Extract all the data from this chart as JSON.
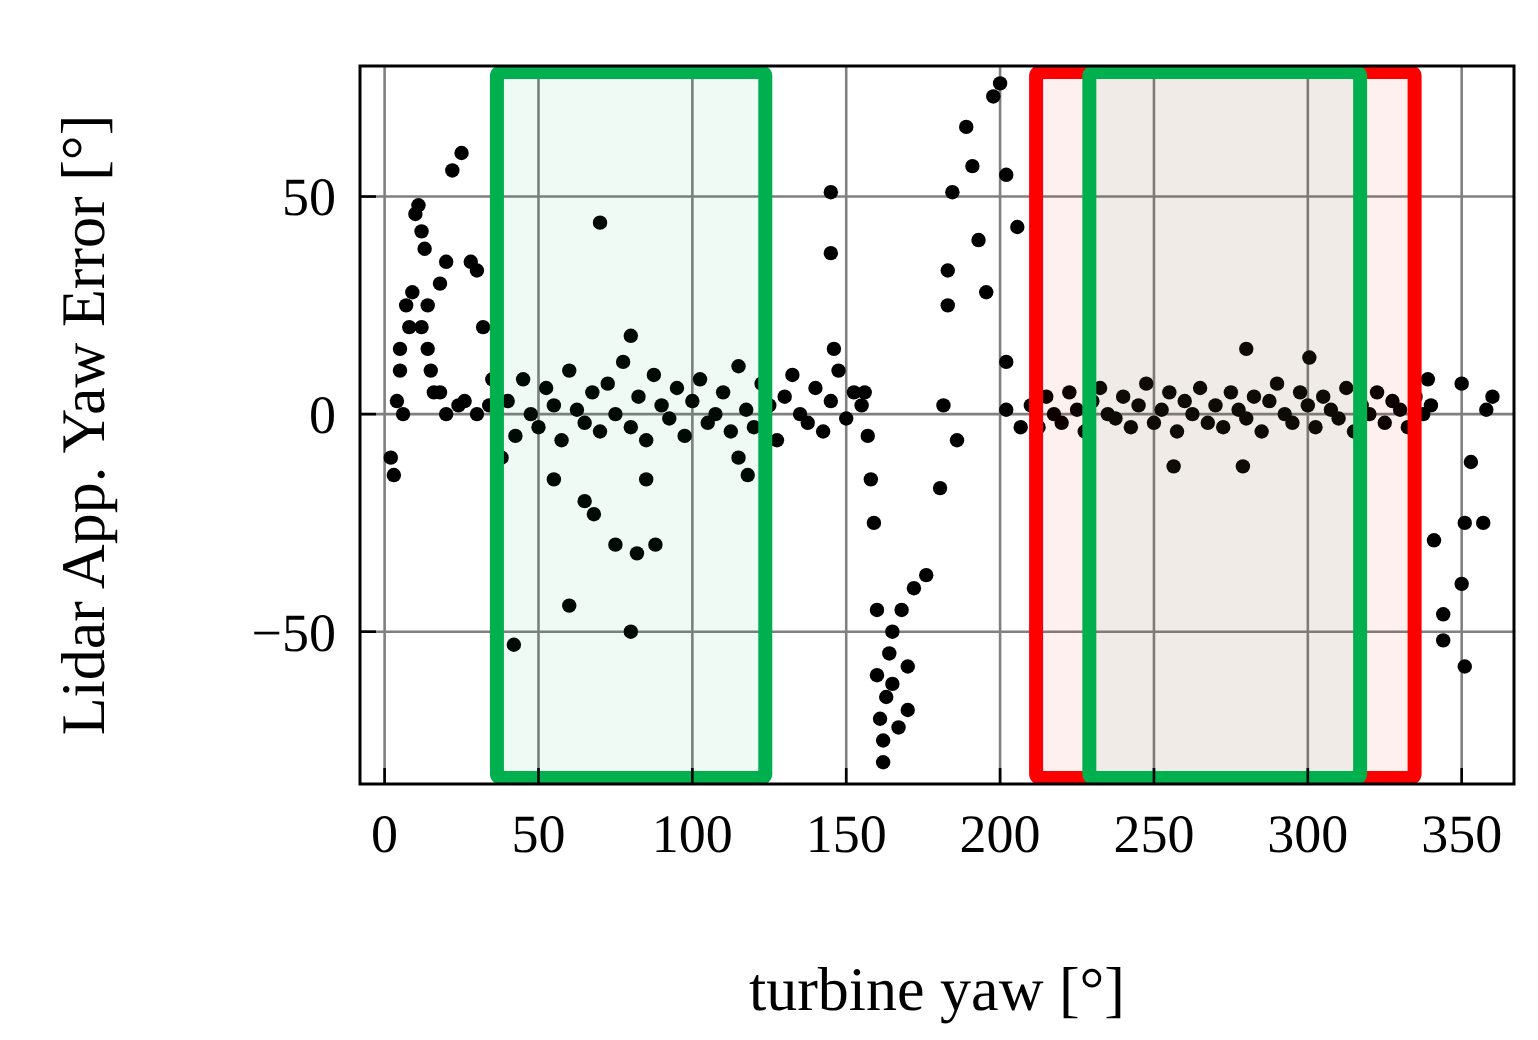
{
  "chart_data": {
    "type": "scatter",
    "xlabel": "turbine yaw [°]",
    "ylabel": "Lidar App. Yaw Error [°]",
    "xlim": [
      -8,
      367
    ],
    "ylim": [
      -85,
      80
    ],
    "xticks": [
      0,
      50,
      100,
      150,
      200,
      250,
      300,
      350
    ],
    "yticks": [
      -50,
      0,
      50
    ],
    "grid": true,
    "marker": "circle",
    "bands": [
      {
        "axis": "x",
        "from": 36.5,
        "to": 123.7,
        "color": "#00b04f"
      },
      {
        "axis": "x",
        "from": 211.7,
        "to": 334.7,
        "color": "#ff0000"
      },
      {
        "axis": "x",
        "from": 229,
        "to": 317,
        "color": "#00b04f"
      }
    ],
    "series": [
      {
        "color": "#000000",
        "x": [
          2,
          3,
          4,
          5,
          6,
          8,
          9,
          10,
          11,
          12,
          13,
          14,
          15,
          16,
          18,
          20,
          22,
          25,
          24,
          28,
          30,
          32,
          35,
          38,
          5,
          7,
          12,
          14,
          18,
          20,
          26,
          30,
          34,
          40,
          42.5,
          45,
          47.5,
          50,
          52.5,
          55,
          57.5,
          60,
          62.5,
          65,
          67.5,
          70,
          72.5,
          75,
          77.5,
          80,
          82.5,
          85,
          87.5,
          90,
          92.5,
          95,
          97.5,
          100,
          102.5,
          105,
          107.5,
          110,
          112.5,
          115,
          117.5,
          120,
          122.5,
          125,
          127.5,
          130,
          132.5,
          135,
          137.5,
          140,
          142.5,
          145,
          147.5,
          150,
          152.5,
          155,
          42,
          60,
          70,
          55,
          65,
          68,
          75,
          80,
          82,
          88,
          85,
          80,
          115,
          118,
          145,
          145,
          146,
          156,
          157,
          158,
          159,
          160,
          160,
          161,
          162,
          162,
          163,
          164,
          165,
          167,
          168,
          170,
          172,
          165,
          170,
          176,
          180.5,
          181.6,
          186,
          183,
          183,
          184.5,
          189,
          191,
          193,
          195.5,
          197.8,
          200,
          202,
          202,
          202,
          205.6,
          206.7,
          210,
          212.5,
          215,
          217.5,
          220,
          222.5,
          225,
          227.5,
          230,
          232.5,
          235,
          237.5,
          240,
          242.5,
          245,
          247.5,
          250,
          252.5,
          255,
          257.5,
          260,
          262.5,
          265,
          267.5,
          270,
          272.5,
          275,
          277.5,
          280,
          282.5,
          285,
          287.5,
          290,
          292.5,
          295,
          297.5,
          300,
          302.5,
          305,
          307.5,
          310,
          312.5,
          315,
          317.5,
          320,
          322.5,
          325,
          327.5,
          330,
          332.5,
          335,
          337.5,
          340,
          256.4,
          278.9,
          280,
          300.5,
          339,
          341,
          344,
          344,
          350,
          351,
          351,
          353,
          357,
          358,
          360,
          350
        ],
        "values": [
          -10,
          -14,
          3,
          10,
          0,
          20,
          28,
          46,
          48,
          42,
          38,
          25,
          10,
          5,
          30,
          35,
          56,
          60,
          2,
          35,
          33,
          20,
          8,
          -10,
          15,
          25,
          20,
          15,
          5,
          0,
          3,
          0,
          2,
          3,
          -5,
          8,
          0,
          -3,
          6,
          2,
          -6,
          10,
          1,
          -2,
          5,
          -4,
          7,
          0,
          12,
          -3,
          4,
          -6,
          9,
          2,
          -1,
          6,
          -5,
          3,
          8,
          -2,
          0,
          5,
          -4,
          11,
          1,
          -3,
          7,
          2,
          -6,
          4,
          9,
          0,
          -2,
          6,
          -4,
          3,
          10,
          -1,
          5,
          2,
          -53,
          -44,
          44,
          -15,
          -20,
          -23,
          -30,
          -50,
          -32,
          -30,
          -15,
          18,
          -10,
          -14,
          51,
          37,
          15,
          5,
          -5,
          -15,
          -25,
          -45,
          -60,
          -70,
          -80,
          -75,
          -65,
          -55,
          -62,
          -72,
          -45,
          -58,
          -40,
          -50,
          -68,
          -37,
          -17,
          2,
          -6,
          33,
          25,
          51,
          66,
          57,
          40,
          28,
          73,
          76,
          55,
          12,
          1,
          43,
          -3,
          2,
          -3,
          4,
          0,
          -2,
          5,
          1,
          -4,
          3,
          6,
          0,
          -1,
          4,
          -3,
          2,
          7,
          -2,
          1,
          5,
          -4,
          3,
          0,
          6,
          -2,
          2,
          -3,
          5,
          1,
          -1,
          4,
          -4,
          3,
          7,
          0,
          -2,
          5,
          2,
          -3,
          4,
          1,
          -1,
          6,
          -4,
          2,
          0,
          5,
          -2,
          3,
          1,
          -3,
          4,
          0,
          2,
          -12,
          -12,
          15,
          13,
          8,
          -29,
          -46,
          -52,
          -39,
          -58,
          -25,
          -11,
          -25,
          1,
          4,
          7
        ]
      }
    ]
  }
}
